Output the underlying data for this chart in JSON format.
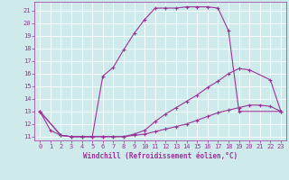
{
  "xlabel": "Windchill (Refroidissement éolien,°C)",
  "xlim": [
    -0.5,
    23.5
  ],
  "ylim": [
    10.7,
    21.7
  ],
  "yticks": [
    11,
    12,
    13,
    14,
    15,
    16,
    17,
    18,
    19,
    20,
    21
  ],
  "xticks": [
    0,
    1,
    2,
    3,
    4,
    5,
    6,
    7,
    8,
    9,
    10,
    11,
    12,
    13,
    14,
    15,
    16,
    17,
    18,
    19,
    20,
    21,
    22,
    23
  ],
  "bg_color": "#ceeaea",
  "line_color": "#993399",
  "grid_color": "#aacccc",
  "curves": [
    {
      "x": [
        0,
        1,
        2,
        3,
        4,
        5,
        6,
        7,
        8,
        9,
        10,
        11,
        12,
        13,
        14,
        15,
        16,
        17,
        18,
        19,
        20,
        21,
        22,
        23
      ],
      "y": [
        13.0,
        11.5,
        11.1,
        11.0,
        11.0,
        11.0,
        11.0,
        11.0,
        11.0,
        11.1,
        11.2,
        11.4,
        11.6,
        11.8,
        12.0,
        12.3,
        12.6,
        12.9,
        13.1,
        13.3,
        13.5,
        13.5,
        13.4,
        13.0
      ]
    },
    {
      "x": [
        0,
        2,
        3,
        4,
        5,
        6,
        7,
        8,
        9,
        10,
        11,
        12,
        13,
        14,
        15,
        16,
        17,
        18,
        19,
        20,
        22,
        23
      ],
      "y": [
        13.0,
        11.1,
        11.0,
        11.0,
        11.0,
        11.0,
        11.0,
        11.0,
        11.2,
        11.5,
        12.2,
        12.8,
        13.3,
        13.8,
        14.3,
        14.9,
        15.4,
        16.0,
        16.4,
        16.3,
        15.5,
        13.0
      ]
    },
    {
      "x": [
        0,
        2,
        3,
        4,
        5,
        6,
        7,
        8,
        9,
        10,
        11,
        12,
        13,
        14,
        15,
        16,
        17,
        18,
        19,
        23
      ],
      "y": [
        13.0,
        11.1,
        11.0,
        11.0,
        11.0,
        15.8,
        16.5,
        17.9,
        19.2,
        20.3,
        21.2,
        21.2,
        21.2,
        21.3,
        21.3,
        21.3,
        21.2,
        19.4,
        13.0,
        13.0
      ]
    }
  ]
}
